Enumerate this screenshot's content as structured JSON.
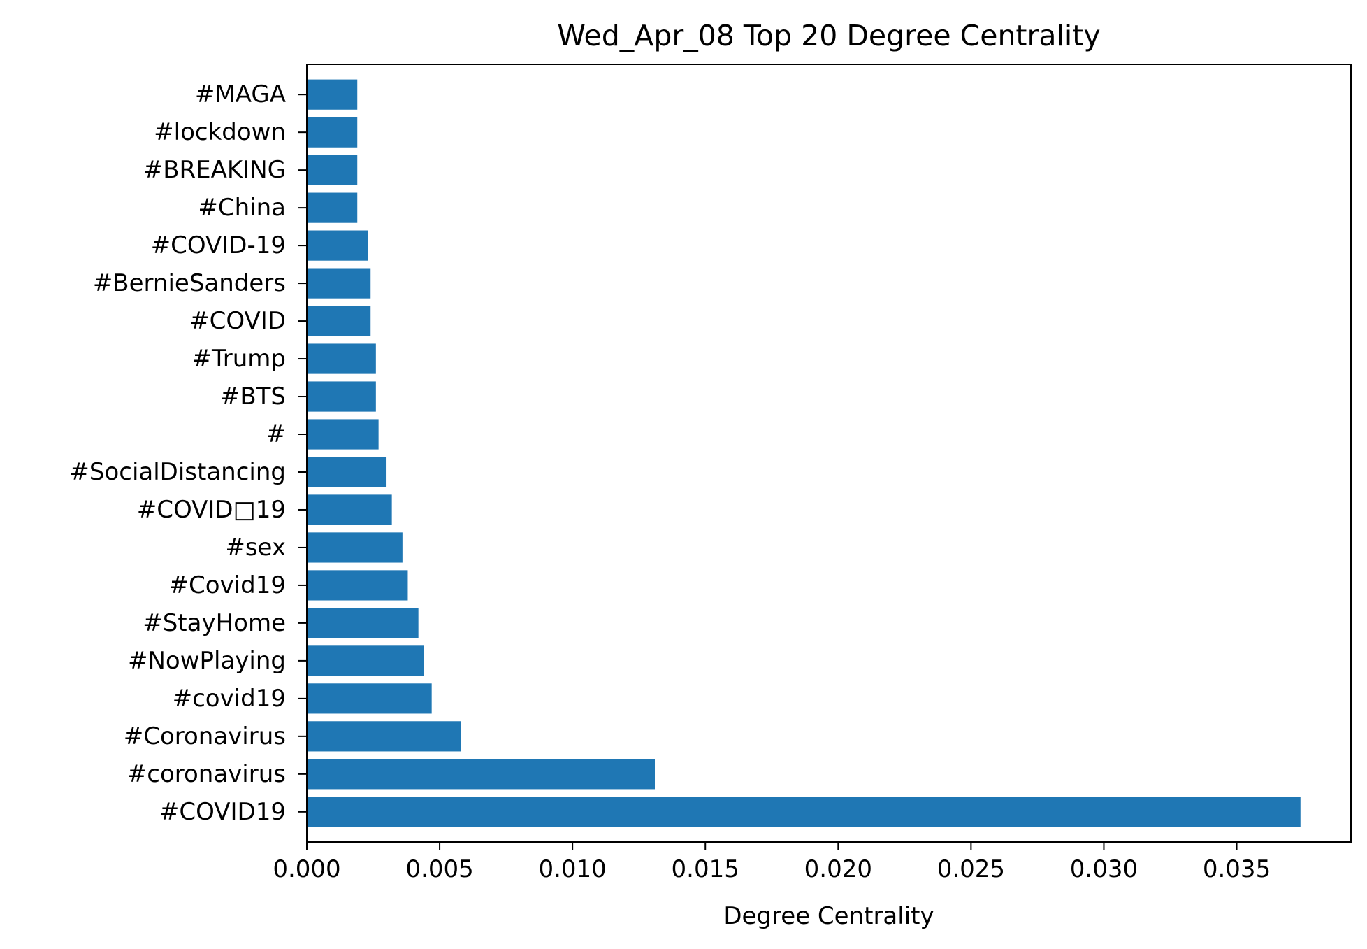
{
  "chart_data": {
    "type": "bar",
    "orientation": "horizontal",
    "title": "Wed_Apr_08 Top 20 Degree Centrality",
    "xlabel": "Degree Centrality",
    "ylabel": "",
    "bar_color": "#1f77b4",
    "xlim": [
      0,
      0.0393
    ],
    "xticks": [
      0.0,
      0.005,
      0.01,
      0.015,
      0.02,
      0.025,
      0.03,
      0.035
    ],
    "xtick_labels": [
      "0.000",
      "0.005",
      "0.010",
      "0.015",
      "0.020",
      "0.025",
      "0.030",
      "0.035"
    ],
    "categories": [
      "#COVID19",
      "#coronavirus",
      "#Coronavirus",
      "#covid19",
      "#NowPlaying",
      "#StayHome",
      "#Covid19",
      "#sex",
      "#COVID□19",
      "#SocialDistancing",
      "#",
      "#BTS",
      "#Trump",
      "#COVID",
      "#BernieSanders",
      "#COVID-19",
      "#China",
      "#BREAKING",
      "#lockdown",
      "#MAGA"
    ],
    "values": [
      0.0374,
      0.0131,
      0.0058,
      0.0047,
      0.0044,
      0.0042,
      0.0038,
      0.0036,
      0.0032,
      0.003,
      0.0027,
      0.0026,
      0.0026,
      0.0024,
      0.0024,
      0.0023,
      0.0019,
      0.0019,
      0.0019,
      0.0019
    ],
    "grid": false
  }
}
